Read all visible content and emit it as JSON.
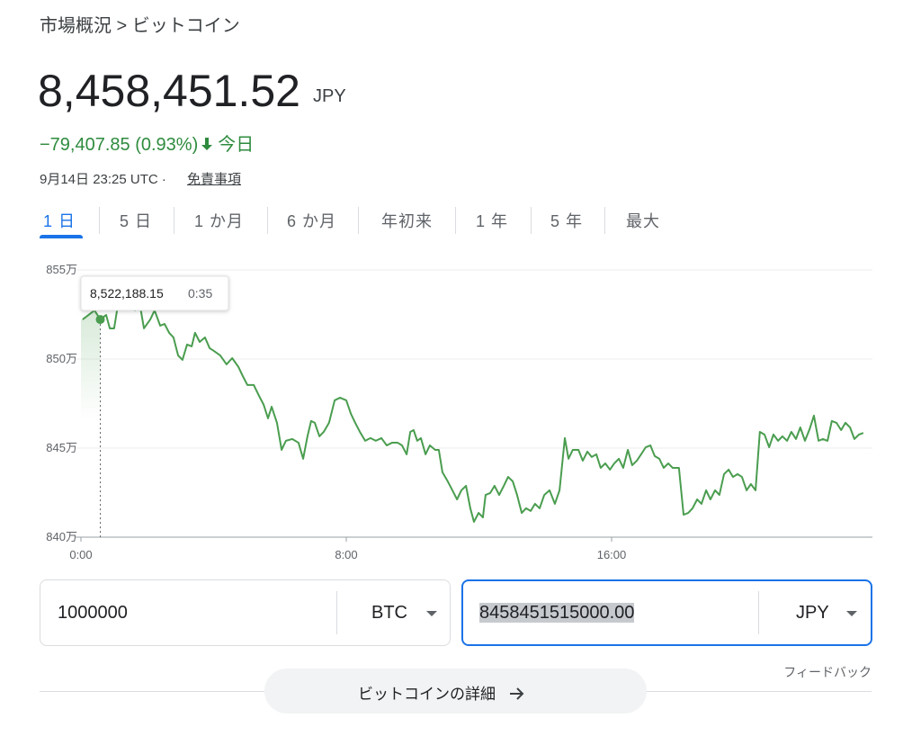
{
  "breadcrumb": "市場概況 > ビットコイン",
  "price": {
    "value": "8,458,451.52",
    "currency": "JPY"
  },
  "change": {
    "text": "−79,407.85 (0.93%)",
    "period": "今日"
  },
  "timestamp": "9月14日 23:25 UTC ·",
  "disclaimer": "免責事項",
  "tabs": [
    "1 日",
    "5 日",
    "1 か月",
    "6 か月",
    "年初来",
    "1 年",
    "5 年",
    "最大"
  ],
  "chart_data": {
    "type": "line",
    "color": "#4a9d4f",
    "x": [
      0.05,
      0.41,
      0.5833,
      0.76,
      0.87,
      1.0,
      1.11,
      1.3,
      1.49,
      1.63,
      1.76,
      1.9,
      2.09,
      2.22,
      2.39,
      2.52,
      2.66,
      2.79,
      2.93,
      3.06,
      3.2,
      3.34,
      3.44,
      3.58,
      3.74,
      3.88,
      4.01,
      4.2,
      4.39,
      4.56,
      4.75,
      4.88,
      5.02,
      5.21,
      5.37,
      5.51,
      5.64,
      5.75,
      5.91,
      6.05,
      6.18,
      6.37,
      6.56,
      6.7,
      6.83,
      6.94,
      7.05,
      7.19,
      7.32,
      7.48,
      7.65,
      7.81,
      8.0,
      8.14,
      8.27,
      8.41,
      8.57,
      8.73,
      8.89,
      9.06,
      9.22,
      9.38,
      9.55,
      9.68,
      9.82,
      9.93,
      10.03,
      10.14,
      10.25,
      10.39,
      10.52,
      10.68,
      10.79,
      10.9,
      11.06,
      11.2,
      11.34,
      11.47,
      11.61,
      11.74,
      11.85,
      11.99,
      12.12,
      12.2,
      12.34,
      12.47,
      12.61,
      12.75,
      12.88,
      13.02,
      13.15,
      13.29,
      13.42,
      13.56,
      13.69,
      13.83,
      13.97,
      14.13,
      14.29,
      14.43,
      14.59,
      14.7,
      14.83,
      15.0,
      15.13,
      15.27,
      15.4,
      15.54,
      15.67,
      15.81,
      15.95,
      16.08,
      16.22,
      16.35,
      16.49,
      16.62,
      16.76,
      16.89,
      17.03,
      17.17,
      17.3,
      17.44,
      17.57,
      17.71,
      17.84,
      18.03,
      18.17,
      18.31,
      18.44,
      18.58,
      18.71,
      18.85,
      18.98,
      19.12,
      19.25,
      19.39,
      19.53,
      19.66,
      19.8,
      19.93,
      20.07,
      20.2,
      20.34,
      20.47,
      20.61,
      20.75,
      20.88,
      21.02,
      21.15,
      21.29,
      21.42,
      21.56,
      21.69,
      21.83,
      21.97,
      22.1,
      22.24,
      22.37,
      22.51,
      22.64,
      22.78,
      22.92,
      23.05,
      23.19,
      23.32,
      23.46,
      23.59
    ],
    "values": [
      8522200,
      8527300,
      8522188.15,
      8524700,
      8517200,
      8517200,
      8529800,
      8534800,
      8532300,
      8527300,
      8532300,
      8517200,
      8522200,
      8527300,
      8518700,
      8519700,
      8514700,
      8512100,
      8502000,
      8499500,
      8508100,
      8507100,
      8514700,
      8509600,
      8512100,
      8506100,
      8504500,
      8502000,
      8497000,
      8500500,
      8495500,
      8490400,
      8485400,
      8485400,
      8479300,
      8474300,
      8466700,
      8473200,
      8464200,
      8449000,
      8454100,
      8455100,
      8453000,
      8444000,
      8456600,
      8465200,
      8464200,
      8456600,
      8459100,
      8464200,
      8476800,
      8478300,
      8476800,
      8469200,
      8464200,
      8459100,
      8454100,
      8455600,
      8454100,
      8455600,
      8451500,
      8453000,
      8453000,
      8451500,
      8446500,
      8459100,
      8460100,
      8454100,
      8455600,
      8446500,
      8451500,
      8449000,
      8449000,
      8436400,
      8431300,
      8426300,
      8421200,
      8426300,
      8428800,
      8416200,
      8408600,
      8413600,
      8411100,
      8423700,
      8424800,
      8428800,
      8423700,
      8428800,
      8433800,
      8431300,
      8423700,
      8413600,
      8416200,
      8414700,
      8418700,
      8416200,
      8423700,
      8426300,
      8418700,
      8426300,
      8455600,
      8444000,
      8449000,
      8449000,
      8442900,
      8448000,
      8445000,
      8446500,
      8438900,
      8441400,
      8437900,
      8441400,
      8444000,
      8438900,
      8449000,
      8440400,
      8442900,
      8446500,
      8450500,
      8451500,
      8445500,
      8444000,
      8438900,
      8441400,
      8438900,
      8438900,
      8412600,
      8413600,
      8416200,
      8421200,
      8418700,
      8426300,
      8421200,
      8426300,
      8423700,
      8435400,
      8437900,
      8433800,
      8435400,
      8433800,
      8426300,
      8429800,
      8426300,
      8459100,
      8457600,
      8450500,
      8457600,
      8454100,
      8456600,
      8454100,
      8459100,
      8455100,
      8461600,
      8454100,
      8460600,
      8468200,
      8454100,
      8455100,
      8454100,
      8465200,
      8464200,
      8460100,
      8464200,
      8461600,
      8455100,
      8457600,
      8458500
    ],
    "xlim": [
      0,
      24
    ],
    "ylim": [
      8400000,
      8550000
    ],
    "xticks": [
      {
        "value": 0,
        "label": "0:00"
      },
      {
        "value": 8,
        "label": "8:00"
      },
      {
        "value": 16,
        "label": "16:00"
      }
    ],
    "yticks": [
      {
        "value": 8400000,
        "label": "840万"
      },
      {
        "value": 8450000,
        "label": "845万"
      },
      {
        "value": 8500000,
        "label": "850万"
      },
      {
        "value": 8550000,
        "label": "855万"
      }
    ],
    "grid": true,
    "tooltip": {
      "x": 0.5833,
      "value": 8522188.15,
      "label": "8,522,188.15",
      "time": "0:35"
    }
  },
  "converter": {
    "from": {
      "amount": "1000000",
      "unit": "BTC"
    },
    "to": {
      "amount": "8458451515000.00",
      "unit": "JPY"
    }
  },
  "feedback": "フィードバック",
  "details_button": "ビットコインの詳細"
}
